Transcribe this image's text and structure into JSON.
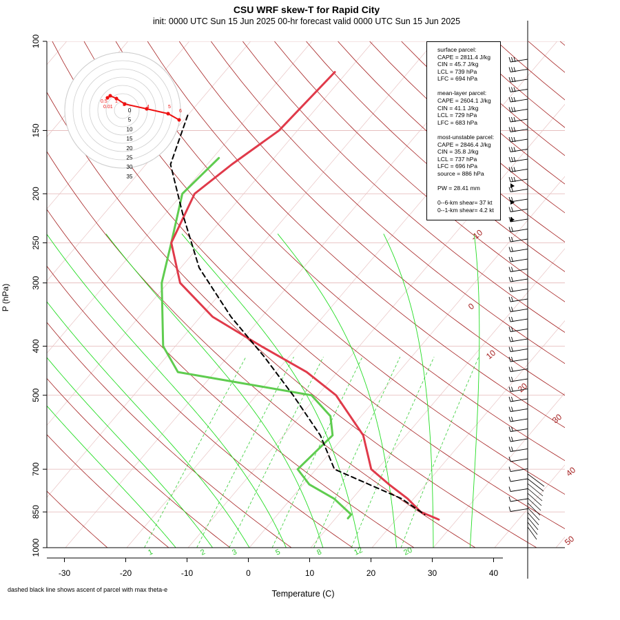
{
  "title": "CSU WRF skew-T for Rapid City",
  "subtitle": "init: 0000 UTC Sun 15 Jun 2025     00-hr forecast valid 0000 UTC Sun 15 Jun 2025",
  "footnote": "dashed black line shows ascent of parcel with max theta-e",
  "colors": {
    "temperature": "#e03a4a",
    "dewpoint": "#5fcc4f",
    "isotherm": "#a52020",
    "dry_adiabat": "#7cd070",
    "moist_adiabat": "#22dd22",
    "mixing_ratio": "#33cc33",
    "parcel": "#000000"
  },
  "info": [
    {
      "head": "surface parcel:",
      "lines": [
        "CAPE = 2811.4 J/kg",
        "CIN = 45.7 J/kg",
        "LCL = 739 hPa",
        "LFC = 694 hPa"
      ]
    },
    {
      "head": "mean-layer parcel:",
      "lines": [
        "CAPE = 2604.1 J/kg",
        "CIN = 41.1 J/kg",
        "LCL = 729 hPa",
        "LFC = 683 hPa"
      ]
    },
    {
      "head": "most-unstable parcel:",
      "lines": [
        "CAPE = 2846.4 J/kg",
        "CIN = 35.8 J/kg",
        "LCL = 737 hPa",
        "LFC = 696 hPa",
        "source = 886 hPa"
      ]
    },
    {
      "head": "",
      "lines": [
        "PW =  28.41 mm"
      ]
    },
    {
      "head": "",
      "lines": [
        "0--6-km shear= 37 kt",
        "0--1-km shear= 4.2 kt"
      ]
    }
  ],
  "chart_data": {
    "type": "line",
    "title": "CSU WRF skew-T for Rapid City",
    "xlabel": "Temperature (C)",
    "ylabel": "P (hPa)",
    "x_ticks": [
      -30,
      -20,
      -10,
      0,
      10,
      20,
      30,
      40
    ],
    "y_ticks": [
      100,
      150,
      200,
      250,
      300,
      400,
      500,
      700,
      850,
      1000
    ],
    "xlim": [
      -33,
      45
    ],
    "ylim": [
      1000,
      100
    ],
    "isotherm_labels": [
      "-10",
      "0",
      "10",
      "20",
      "30",
      "40",
      "50"
    ],
    "mixing_ratio_labels": [
      "1",
      "2",
      "3",
      "5",
      "8",
      "12",
      "20"
    ],
    "series": [
      {
        "name": "temperature",
        "points": [
          [
            -52,
            115
          ],
          [
            -53,
            150
          ],
          [
            -56,
            175
          ],
          [
            -58,
            200
          ],
          [
            -55,
            250
          ],
          [
            -48,
            300
          ],
          [
            -38,
            350
          ],
          [
            -26,
            400
          ],
          [
            -15,
            450
          ],
          [
            -7,
            500
          ],
          [
            3,
            600
          ],
          [
            9,
            700
          ],
          [
            14,
            750
          ],
          [
            19,
            800
          ],
          [
            23,
            850
          ],
          [
            27,
            880
          ]
        ]
      },
      {
        "name": "dewpoint",
        "points": [
          [
            -59,
            170
          ],
          [
            -60,
            200
          ],
          [
            -55,
            250
          ],
          [
            -51,
            300
          ],
          [
            -42,
            400
          ],
          [
            -36,
            450
          ],
          [
            -11,
            500
          ],
          [
            -5,
            550
          ],
          [
            -2,
            600
          ],
          [
            -3,
            700
          ],
          [
            1,
            750
          ],
          [
            7,
            800
          ],
          [
            12,
            860
          ],
          [
            12,
            875
          ]
        ]
      },
      {
        "name": "parcel",
        "points": [
          [
            -70,
            140
          ],
          [
            -66,
            175
          ],
          [
            -57,
            220
          ],
          [
            -47,
            280
          ],
          [
            -35,
            350
          ],
          [
            -24,
            420
          ],
          [
            -14,
            500
          ],
          [
            -4,
            600
          ],
          [
            3,
            700
          ],
          [
            18,
            800
          ],
          [
            24,
            860
          ]
        ]
      }
    ],
    "hodograph": {
      "ring_labels": [
        "0",
        "5",
        "10",
        "15",
        "20",
        "25",
        "30",
        "35"
      ],
      "point_labels": [
        "0.01",
        "0.5",
        "1",
        "3",
        "4",
        "5",
        "6"
      ]
    }
  }
}
